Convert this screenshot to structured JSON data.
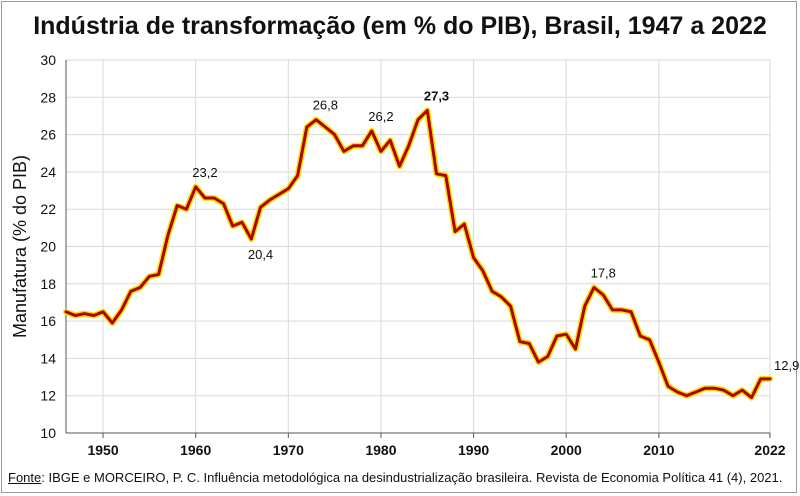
{
  "title": "Indústria de transformação (em % do PIB), Brasil, 1947 a 2022",
  "footer": {
    "source_label": "Fonte",
    "text": ": IBGE e MORCEIRO, P. C. Influência metodológica na desindustrialização brasileira. Revista de Economia Política 41 (4), 2021."
  },
  "colors": {
    "line_outer": "#f2e400",
    "line_inner": "#b30000",
    "grid": "#d9d9d9"
  },
  "chart_data": {
    "type": "line",
    "title": "Indústria de transformação (em % do PIB), Brasil, 1947 a 2022",
    "xlabel": "",
    "ylabel": "Manufatura  (% do PIB)",
    "xlim": [
      1946,
      2022
    ],
    "ylim": [
      10,
      30
    ],
    "yticks": [
      10,
      12,
      14,
      16,
      18,
      20,
      22,
      24,
      26,
      28,
      30
    ],
    "xticks": [
      "1950",
      "1960",
      "1970",
      "1980",
      "1990",
      "2000",
      "2010",
      "2022"
    ],
    "grid": true,
    "x": [
      1946,
      1947,
      1948,
      1949,
      1950,
      1951,
      1952,
      1953,
      1954,
      1955,
      1956,
      1957,
      1958,
      1959,
      1960,
      1961,
      1962,
      1963,
      1964,
      1965,
      1966,
      1967,
      1968,
      1969,
      1970,
      1971,
      1972,
      1973,
      1974,
      1975,
      1976,
      1977,
      1978,
      1979,
      1980,
      1981,
      1982,
      1983,
      1984,
      1985,
      1986,
      1987,
      1988,
      1989,
      1990,
      1991,
      1992,
      1993,
      1994,
      1995,
      1996,
      1997,
      1998,
      1999,
      2000,
      2001,
      2002,
      2003,
      2004,
      2005,
      2006,
      2007,
      2008,
      2009,
      2010,
      2011,
      2012,
      2013,
      2014,
      2015,
      2016,
      2017,
      2018,
      2019,
      2020,
      2021,
      2022
    ],
    "series": [
      {
        "values": [
          16.5,
          16.3,
          16.4,
          16.3,
          16.5,
          15.9,
          16.6,
          17.6,
          17.8,
          18.4,
          18.5,
          20.6,
          22.2,
          22.0,
          23.2,
          22.6,
          22.6,
          22.3,
          21.1,
          21.3,
          20.4,
          22.1,
          22.5,
          22.8,
          23.1,
          23.8,
          26.4,
          26.8,
          26.4,
          26.0,
          25.1,
          25.4,
          25.4,
          26.2,
          25.1,
          25.7,
          24.3,
          25.4,
          26.8,
          27.3,
          23.9,
          23.8,
          20.8,
          21.2,
          19.4,
          18.7,
          17.6,
          17.3,
          16.8,
          14.9,
          14.8,
          13.8,
          14.1,
          15.2,
          15.3,
          14.5,
          16.8,
          17.8,
          17.4,
          16.6,
          16.6,
          16.5,
          15.2,
          15.0,
          13.8,
          12.5,
          12.2,
          12.0,
          12.2,
          12.4,
          12.4,
          12.3,
          12.0,
          12.3,
          11.9,
          12.9,
          12.9
        ]
      }
    ],
    "annotations": [
      {
        "x": 1961,
        "y": 23.2,
        "text": "23,2",
        "bold": false,
        "pos": "above"
      },
      {
        "x": 1967,
        "y": 20.4,
        "text": "20,4",
        "bold": false,
        "pos": "below"
      },
      {
        "x": 1974,
        "y": 26.8,
        "text": "26,8",
        "bold": false,
        "pos": "above"
      },
      {
        "x": 1980,
        "y": 26.2,
        "text": "26,2",
        "bold": false,
        "pos": "above"
      },
      {
        "x": 1986,
        "y": 27.3,
        "text": "27,3",
        "bold": true,
        "pos": "above"
      },
      {
        "x": 2004,
        "y": 17.8,
        "text": "17,8",
        "bold": false,
        "pos": "above"
      },
      {
        "x": 2022,
        "y": 12.9,
        "text": "12,9",
        "bold": false,
        "pos": "right"
      }
    ]
  }
}
